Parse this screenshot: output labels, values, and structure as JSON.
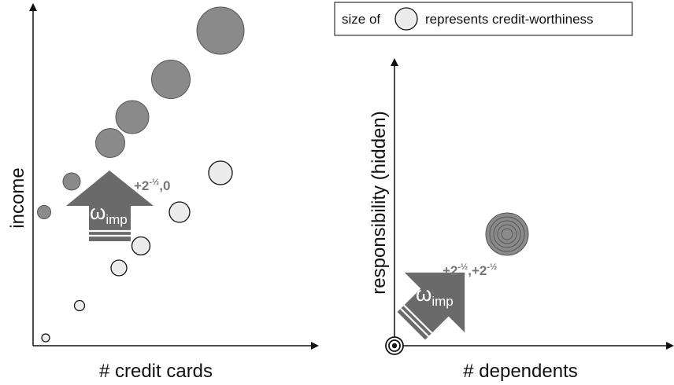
{
  "legend": {
    "prefix": "size of",
    "suffix": "represents credit-worthiness",
    "icon": "circle-icon"
  },
  "left_plot": {
    "xlabel": "# credit cards",
    "ylabel": "income",
    "vector_symbol": "ω",
    "vector_subscript": "imp",
    "vector_value_plus": "+2",
    "vector_value_exp": "-½",
    "vector_value_rest": ",0",
    "colors": {
      "dark": "#8a8a8a",
      "light": "#ececec",
      "arrow": "#6a6a6a"
    }
  },
  "right_plot": {
    "xlabel": "# dependents",
    "ylabel": "responsibility (hidden)",
    "vector_symbol": "ω",
    "vector_subscript": "imp",
    "vector_value_a": "+2",
    "vector_value_a_exp": "-½",
    "vector_value_sep": ",",
    "vector_value_b": "+2",
    "vector_value_b_exp": "-½",
    "colors": {
      "concentric": "#8a8a8a",
      "origin": "#111111",
      "arrow": "#6a6a6a"
    }
  }
}
